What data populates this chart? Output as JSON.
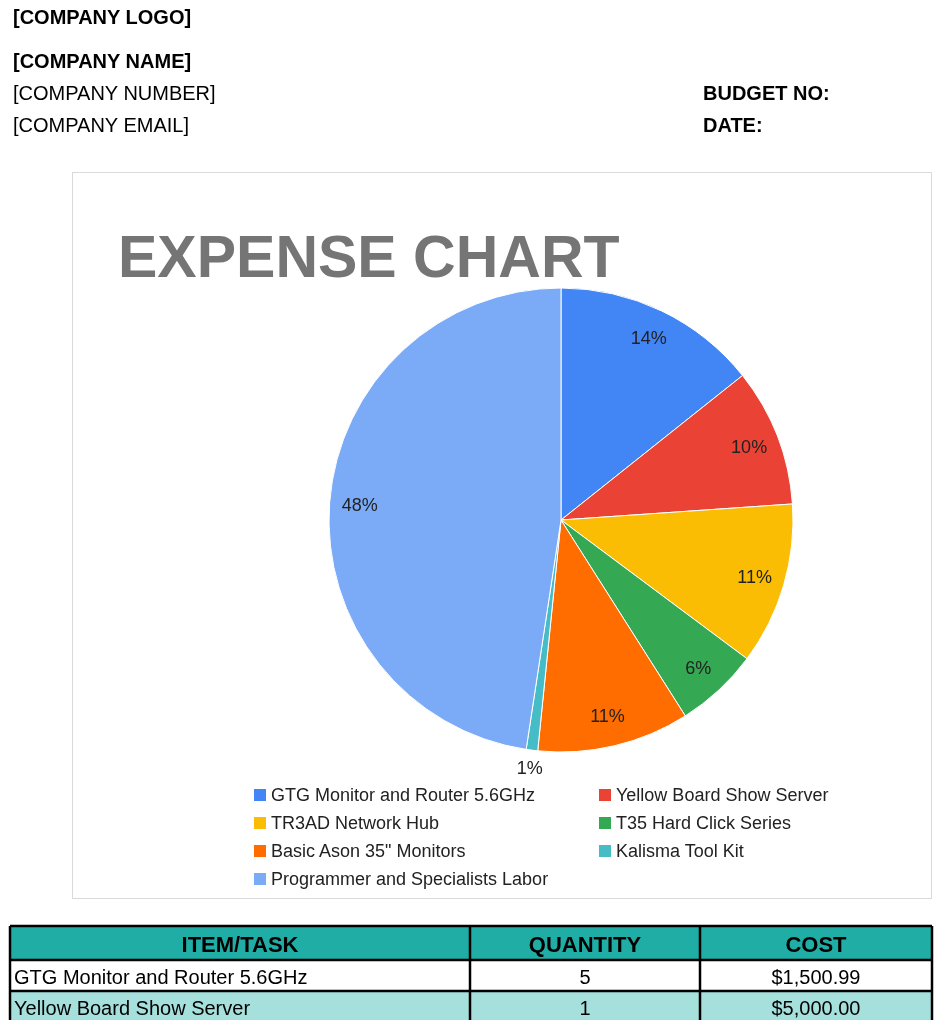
{
  "chart_data": [
    {
      "type": "other",
      "annotations": [
        "[COMPANY LOGO]",
        "[COMPANY NAME]",
        "[COMPANY NUMBER]",
        "[COMPANY EMAIL]",
        "BUDGET NO:",
        "DATE:"
      ]
    },
    {
      "type": "pie",
      "title": "EXPENSE CHART",
      "categories": [
        "GTG Monitor and Router 5.6GHz",
        "Yellow Board Show Server",
        "TR3AD Network Hub",
        "T35 Hard Click Series",
        "Basic Ason 35\" Monitors",
        "Kalisma Tool Kit",
        "Programmer and Specialists Labor"
      ],
      "values": [
        14.3,
        9.6,
        11.3,
        5.8,
        10.6,
        0.8,
        47.6
      ],
      "value_labels": [
        "14%",
        "10%",
        "11%",
        "6%",
        "11%",
        "1%",
        "48%"
      ],
      "colors": [
        "#4285f4",
        "#ea4335",
        "#fbbc04",
        "#34a853",
        "#ff6d01",
        "#46bdc6",
        "#7baaf7"
      ],
      "legend": "bottom"
    },
    {
      "type": "other",
      "xlabel": "ITEM/TASK",
      "categories": [
        "GTG Monitor and Router 5.6GHz",
        "Yellow Board Show Server"
      ],
      "series": [
        {
          "name": "QUANTITY",
          "values": [
            5,
            1
          ],
          "value_labels": [
            "5",
            "1"
          ]
        },
        {
          "name": "COST",
          "values": [
            1500.99,
            5000.0
          ],
          "value_labels": [
            "$1,500.99",
            "$5,000.00"
          ]
        }
      ]
    }
  ]
}
